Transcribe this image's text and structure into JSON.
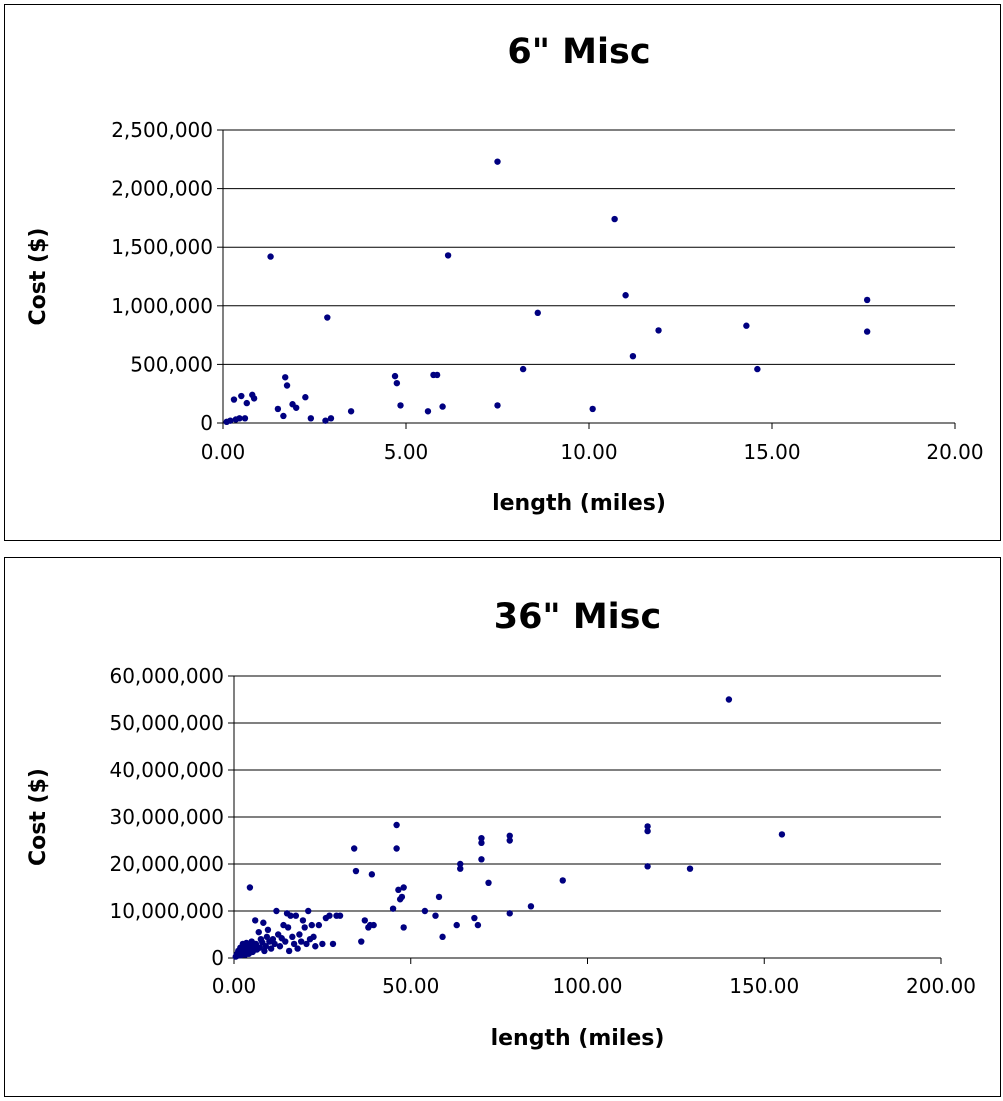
{
  "colors": {
    "marker": "#000080",
    "grid": "#000000",
    "background": "#ffffff"
  },
  "chart_data": [
    {
      "type": "scatter",
      "title": "6\" Misc",
      "xlabel": "length (miles)",
      "ylabel": "Cost ($)",
      "xlim": [
        0,
        20
      ],
      "ylim": [
        0,
        2500000
      ],
      "xticks": [
        "0.00",
        "5.00",
        "10.00",
        "15.00",
        "20.00"
      ],
      "yticks": [
        "0",
        "500,000",
        "1,000,000",
        "1,500,000",
        "2,000,000",
        "2,500,000"
      ],
      "grid": "horizontal",
      "legend": "none",
      "series": [
        {
          "points": [
            [
              0.1,
              10000
            ],
            [
              0.2,
              20000
            ],
            [
              0.3,
              200000
            ],
            [
              0.35,
              30000
            ],
            [
              0.45,
              40000
            ],
            [
              0.5,
              230000
            ],
            [
              0.6,
              40000
            ],
            [
              0.65,
              170000
            ],
            [
              0.8,
              240000
            ],
            [
              0.85,
              210000
            ],
            [
              1.3,
              1420000
            ],
            [
              1.5,
              120000
            ],
            [
              1.65,
              60000
            ],
            [
              1.7,
              390000
            ],
            [
              1.75,
              320000
            ],
            [
              1.9,
              160000
            ],
            [
              2.0,
              130000
            ],
            [
              2.25,
              220000
            ],
            [
              2.4,
              40000
            ],
            [
              2.85,
              900000
            ],
            [
              2.8,
              20000
            ],
            [
              2.95,
              40000
            ],
            [
              3.5,
              100000
            ],
            [
              4.7,
              400000
            ],
            [
              4.75,
              340000
            ],
            [
              4.85,
              150000
            ],
            [
              5.6,
              100000
            ],
            [
              5.75,
              410000
            ],
            [
              5.85,
              410000
            ],
            [
              6.0,
              140000
            ],
            [
              6.15,
              1430000
            ],
            [
              7.5,
              2230000
            ],
            [
              7.5,
              150000
            ],
            [
              8.2,
              460000
            ],
            [
              8.6,
              940000
            ],
            [
              10.1,
              120000
            ],
            [
              10.7,
              1740000
            ],
            [
              11.0,
              1090000
            ],
            [
              11.2,
              570000
            ],
            [
              11.9,
              790000
            ],
            [
              14.3,
              830000
            ],
            [
              14.6,
              460000
            ],
            [
              17.6,
              1050000
            ],
            [
              17.6,
              780000
            ]
          ]
        }
      ]
    },
    {
      "type": "scatter",
      "title": "36\" Misc",
      "xlabel": "length (miles)",
      "ylabel": "Cost ($)",
      "xlim": [
        0,
        200
      ],
      "ylim": [
        0,
        60000000
      ],
      "xticks": [
        "0.00",
        "50.00",
        "100.00",
        "150.00",
        "200.00"
      ],
      "yticks": [
        "0",
        "10,000,000",
        "20,000,000",
        "30,000,000",
        "40,000,000",
        "50,000,000",
        "60,000,000"
      ],
      "grid": "horizontal",
      "legend": "none",
      "series": [
        {
          "points": [
            [
              0.5,
              300000
            ],
            [
              0.8,
              800000
            ],
            [
              1,
              500000
            ],
            [
              1.2,
              1500000
            ],
            [
              1.5,
              1000000
            ],
            [
              1.8,
              2200000
            ],
            [
              2,
              600000
            ],
            [
              2.2,
              1800000
            ],
            [
              2.5,
              3000000
            ],
            [
              2.8,
              1200000
            ],
            [
              3,
              2500000
            ],
            [
              3.2,
              700000
            ],
            [
              3.5,
              3200000
            ],
            [
              3.8,
              1600000
            ],
            [
              4,
              2800000
            ],
            [
              4.2,
              900000
            ],
            [
              4.5,
              15000000
            ],
            [
              4.8,
              2000000
            ],
            [
              5,
              3500000
            ],
            [
              5.3,
              1300000
            ],
            [
              5.6,
              2600000
            ],
            [
              6,
              8000000
            ],
            [
              6.2,
              3000000
            ],
            [
              6.5,
              1800000
            ],
            [
              7,
              5500000
            ],
            [
              7.3,
              2200000
            ],
            [
              7.6,
              4000000
            ],
            [
              8,
              3300000
            ],
            [
              8.3,
              7500000
            ],
            [
              8.6,
              1500000
            ],
            [
              9,
              2500000
            ],
            [
              9.3,
              4500000
            ],
            [
              9.6,
              6000000
            ],
            [
              10,
              3500000
            ],
            [
              10.5,
              2000000
            ],
            [
              11,
              4000000
            ],
            [
              11.5,
              3000000
            ],
            [
              12,
              10000000
            ],
            [
              12.5,
              5000000
            ],
            [
              13,
              2500000
            ],
            [
              13.5,
              4200000
            ],
            [
              14,
              7000000
            ],
            [
              14.5,
              3500000
            ],
            [
              15,
              9500000
            ],
            [
              15.3,
              6500000
            ],
            [
              15.6,
              1500000
            ],
            [
              16,
              9000000
            ],
            [
              16.5,
              4500000
            ],
            [
              17,
              3000000
            ],
            [
              17.5,
              9000000
            ],
            [
              18,
              2000000
            ],
            [
              18.5,
              5000000
            ],
            [
              19,
              3500000
            ],
            [
              19.5,
              8000000
            ],
            [
              20,
              6500000
            ],
            [
              20.5,
              3000000
            ],
            [
              21,
              10000000
            ],
            [
              21.5,
              4000000
            ],
            [
              22,
              7000000
            ],
            [
              22.5,
              4500000
            ],
            [
              23,
              2500000
            ],
            [
              24,
              7000000
            ],
            [
              25,
              3000000
            ],
            [
              26,
              8500000
            ],
            [
              27,
              9000000
            ],
            [
              28,
              3000000
            ],
            [
              29,
              9000000
            ],
            [
              30,
              9000000
            ],
            [
              34,
              23300000
            ],
            [
              34.5,
              18500000
            ],
            [
              36,
              3500000
            ],
            [
              37,
              8000000
            ],
            [
              38,
              6500000
            ],
            [
              38.5,
              7000000
            ],
            [
              39,
              17800000
            ],
            [
              39.5,
              7000000
            ],
            [
              45,
              10500000
            ],
            [
              46,
              28300000
            ],
            [
              46,
              23300000
            ],
            [
              46.5,
              14500000
            ],
            [
              47,
              12500000
            ],
            [
              47.5,
              13000000
            ],
            [
              48,
              15000000
            ],
            [
              48,
              6500000
            ],
            [
              54,
              10000000
            ],
            [
              57,
              9000000
            ],
            [
              58,
              13000000
            ],
            [
              59,
              4500000
            ],
            [
              63,
              7000000
            ],
            [
              64,
              19000000
            ],
            [
              64,
              20000000
            ],
            [
              68,
              8500000
            ],
            [
              69,
              7000000
            ],
            [
              70,
              25500000
            ],
            [
              70,
              24500000
            ],
            [
              70,
              21000000
            ],
            [
              72,
              16000000
            ],
            [
              78,
              26000000
            ],
            [
              78,
              25000000
            ],
            [
              78,
              9500000
            ],
            [
              84,
              11000000
            ],
            [
              93,
              16500000
            ],
            [
              117,
              28000000
            ],
            [
              117,
              27000000
            ],
            [
              117,
              19500000
            ],
            [
              129,
              19000000
            ],
            [
              140,
              55000000
            ],
            [
              155,
              26300000
            ]
          ]
        }
      ]
    }
  ]
}
